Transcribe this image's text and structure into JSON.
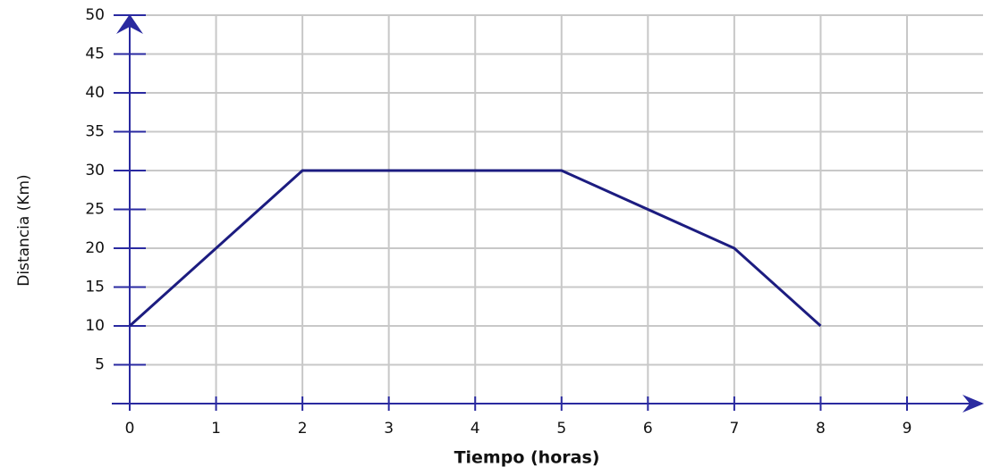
{
  "chart_data": {
    "type": "line",
    "x": [
      0,
      2,
      5,
      7,
      8
    ],
    "series": [
      {
        "name": "Distancia",
        "color": "#1c1c80",
        "values": [
          10,
          30,
          30,
          20,
          10
        ]
      }
    ],
    "xlabel": "Tiempo (horas)",
    "ylabel": "Distancia (Km)",
    "xlim": [
      0,
      9
    ],
    "ylim": [
      0,
      50
    ],
    "xticks": [
      0,
      1,
      2,
      3,
      4,
      5,
      6,
      7,
      8,
      9
    ],
    "yticks": [
      5,
      10,
      15,
      20,
      25,
      30,
      35,
      40,
      45,
      50
    ],
    "grid": true
  }
}
